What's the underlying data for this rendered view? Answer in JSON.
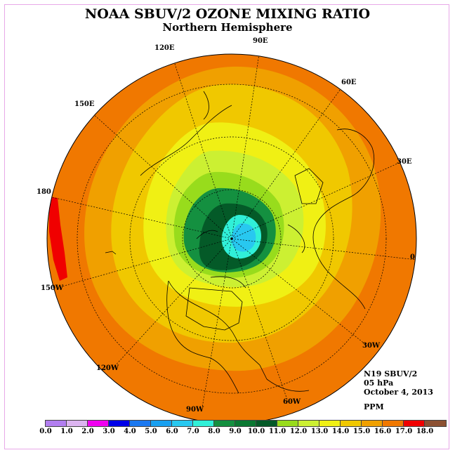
{
  "title": "NOAA SBUV/2 OZONE MIXING RATIO",
  "subtitle": "Northern Hemisphere",
  "longitude_labels": [
    "90E",
    "60E",
    "30E",
    "0",
    "30W",
    "60W",
    "90W",
    "120W",
    "150W",
    "180",
    "150E",
    "120E"
  ],
  "info": {
    "instrument": "N19 SBUV/2",
    "pressure_level": "05 hPa",
    "date": "October 4, 2013",
    "units": "PPM"
  },
  "colorbar": {
    "labels": [
      "0.0",
      "1.0",
      "2.0",
      "3.0",
      "4.0",
      "5.0",
      "6.0",
      "7.0",
      "8.0",
      "9.0",
      "10.0",
      "11.0",
      "12.0",
      "13.0",
      "14.0",
      "15.0",
      "16.0",
      "17.0",
      "18.0"
    ],
    "colors": [
      "#b27ef0",
      "#dcb4f0",
      "#f000f0",
      "#0000e8",
      "#1a78f0",
      "#18a0f0",
      "#28c8f0",
      "#30f0d8",
      "#149040",
      "#0a7832",
      "#045a28",
      "#98dc1c",
      "#ccf032",
      "#f0f014",
      "#f0c800",
      "#f0a000",
      "#f07800",
      "#f00000",
      "#8c5032"
    ]
  },
  "map_colors": {
    "ozone_15_16": "#f07800",
    "ozone_14_15": "#f0a000",
    "ozone_13_14": "#f0c800",
    "ozone_12_13": "#f0f014",
    "ozone_11_12": "#ccf032",
    "ozone_10_11": "#98dc1c",
    "ozone_9_10": "#149040",
    "ozone_8_9": "#045a28",
    "ozone_7_8": "#30f0d8",
    "ozone_6_7": "#28c8f0",
    "ozone_16_17": "#f00000"
  }
}
